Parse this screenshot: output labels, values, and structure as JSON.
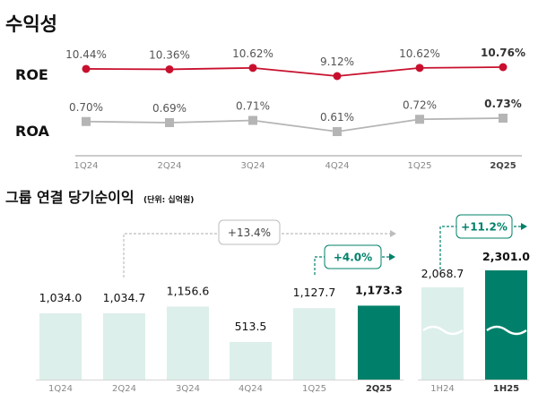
{
  "chart_data": [
    {
      "type": "line",
      "title": "수익성",
      "categories": [
        "1Q24",
        "2Q24",
        "3Q24",
        "4Q24",
        "1Q25",
        "2Q25"
      ],
      "series": [
        {
          "name": "ROE",
          "values": [
            10.44,
            10.36,
            10.62,
            9.12,
            10.62,
            10.76
          ],
          "labels": [
            "10.44%",
            "10.36%",
            "10.62%",
            "9.12%",
            "10.62%",
            "10.76%"
          ],
          "color": "#c8102e",
          "marker": "circle"
        },
        {
          "name": "ROA",
          "values": [
            0.7,
            0.69,
            0.71,
            0.61,
            0.72,
            0.73
          ],
          "labels": [
            "0.70%",
            "0.69%",
            "0.71%",
            "0.61%",
            "0.72%",
            "0.73%"
          ],
          "color": "#b5b5b5",
          "marker": "square"
        }
      ],
      "grid": false
    },
    {
      "type": "bar",
      "title": "그룹 연결 당기순이익",
      "unit": "(단위: 십억원)",
      "categories": [
        "1Q24",
        "2Q24",
        "3Q24",
        "4Q24",
        "1Q25",
        "2Q25"
      ],
      "values": [
        1034.0,
        1034.7,
        1156.6,
        513.5,
        1127.7,
        1173.3
      ],
      "labels": [
        "1,034.0",
        "1,034.7",
        "1,156.6",
        "513.5",
        "1,127.7",
        "1,173.3"
      ],
      "half_categories": [
        "1H24",
        "1H25"
      ],
      "half_values": [
        2068.7,
        2301.0
      ],
      "half_labels": [
        "2,068.7",
        "2,301.0"
      ],
      "annotations": {
        "yoy_quarter": "+13.4%",
        "qoq": "+4.0%",
        "yoy_half": "+11.2%"
      },
      "colors": {
        "light": "#dcefeb",
        "dark": "#00806a",
        "gray_arrow": "#bdbdbd"
      }
    }
  ]
}
